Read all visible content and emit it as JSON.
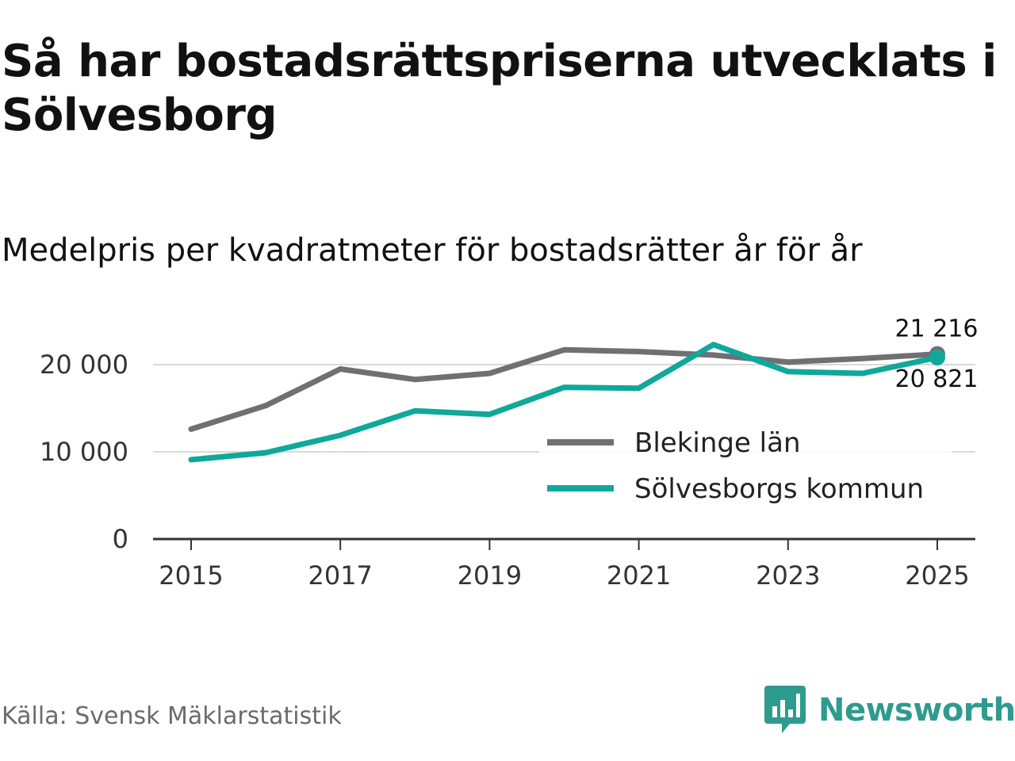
{
  "title": "Så har bostadsrättspriserna utvecklats i Sölvesborg",
  "subtitle": "Medelpris per kvadratmeter för bostadsrätter år för år",
  "source": "Källa: Svensk Mäklarstatistik",
  "brand": {
    "name": "Newsworthy",
    "icon": "newsworthy-logo-icon",
    "color": "#2e9b8f"
  },
  "chart_data": {
    "type": "line",
    "title": "Medelpris per kvadratmeter för bostadsrätter år för år",
    "xlabel": "",
    "ylabel": "",
    "x": [
      2015,
      2016,
      2017,
      2018,
      2019,
      2020,
      2021,
      2022,
      2023,
      2024,
      2025
    ],
    "xticks": [
      "2015",
      "2017",
      "2019",
      "2021",
      "2023",
      "2025"
    ],
    "yticks": [
      "0",
      "10 000",
      "20 000"
    ],
    "ylim": [
      0,
      22500
    ],
    "grid": true,
    "legend_position": "center-right",
    "series": [
      {
        "name": "Blekinge län",
        "color": "#707074",
        "values": [
          12600,
          15300,
          19500,
          18300,
          19000,
          21700,
          21500,
          21100,
          20300,
          20700,
          21216
        ],
        "end_label": "21 216"
      },
      {
        "name": "Sölvesborgs kommun",
        "color": "#0fa89a",
        "values": [
          9100,
          9900,
          11900,
          14700,
          14300,
          17400,
          17300,
          22300,
          19200,
          19000,
          20821
        ],
        "end_label": "20 821"
      }
    ]
  }
}
